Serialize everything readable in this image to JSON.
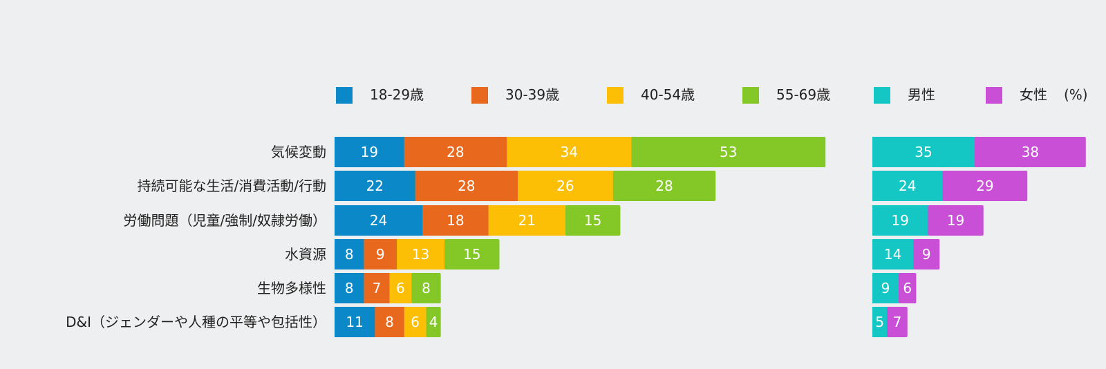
{
  "chart_data": [
    {
      "type": "bar",
      "orientation": "horizontal",
      "stacked": true,
      "categories": [
        "気候変動",
        "持続可能な生活/消費活動/行動",
        "労働問題（児童/強制/奴隷労働）",
        "水資源",
        "生物多様性",
        "D&I（ジェンダーや人種の平等や包括性）"
      ],
      "series": [
        {
          "name": "18-29歳",
          "color": "#0a88c8",
          "values": [
            19,
            22,
            24,
            8,
            8,
            11
          ]
        },
        {
          "name": "30-39歳",
          "color": "#e8691e",
          "values": [
            28,
            28,
            18,
            9,
            7,
            8
          ]
        },
        {
          "name": "40-54歳",
          "color": "#fdbf05",
          "values": [
            34,
            26,
            21,
            13,
            6,
            6
          ]
        },
        {
          "name": "55-69歳",
          "color": "#84c827",
          "values": [
            53,
            28,
            15,
            15,
            8,
            4
          ]
        }
      ],
      "grid": false
    },
    {
      "type": "bar",
      "orientation": "horizontal",
      "stacked": true,
      "categories": [
        "気候変動",
        "持続可能な生活/消費活動/行動",
        "労働問題（児童/強制/奴隷労働）",
        "水資源",
        "生物多様性",
        "D&I（ジェンダーや人種の平等や包括性）"
      ],
      "series": [
        {
          "name": "男性",
          "color": "#14c6c4",
          "values": [
            35,
            24,
            19,
            14,
            9,
            5
          ]
        },
        {
          "name": "女性",
          "color": "#c94fd6",
          "values": [
            38,
            29,
            19,
            9,
            6,
            7
          ]
        }
      ],
      "grid": false
    }
  ],
  "legend_position": "top",
  "unit": "(%)"
}
